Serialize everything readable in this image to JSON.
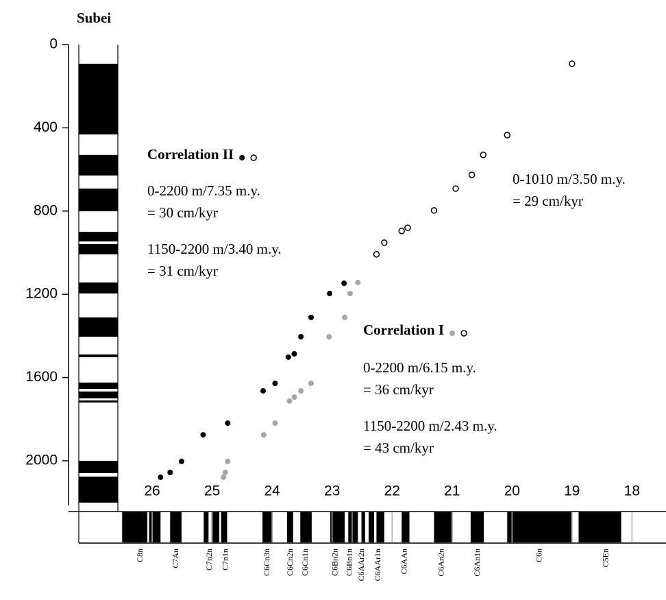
{
  "chart_data": {
    "type": "scatter",
    "title": "Subei",
    "ylim": [
      0,
      2200
    ],
    "yticks": [
      0,
      400,
      800,
      1200,
      1600,
      2000
    ],
    "xlim": [
      26.55,
      17.45
    ],
    "xticks": [
      26,
      25,
      24,
      23,
      22,
      21,
      20,
      19,
      18
    ],
    "series": [
      {
        "color": "#000000",
        "filled": true,
        "x": [
          22.8,
          23.04,
          23.35,
          23.52,
          23.63,
          23.73,
          23.95,
          24.15,
          24.74,
          25.15,
          25.51,
          25.7,
          25.86
        ],
        "values": [
          1147,
          1196,
          1311,
          1404,
          1486,
          1502,
          1628,
          1664,
          1819,
          1875,
          2003,
          2056,
          2079
        ]
      },
      {
        "color": "#a6a6a6",
        "filled": true,
        "x": [
          22.57,
          22.7,
          22.79,
          23.05,
          23.35,
          23.52,
          23.63,
          23.71,
          23.95,
          24.14,
          24.74,
          24.78,
          24.81
        ],
        "values": [
          1143,
          1196,
          1311,
          1404,
          1628,
          1664,
          1694,
          1713,
          1819,
          1875,
          2003,
          2056,
          2079
        ]
      },
      {
        "color": "#000000",
        "filled": false,
        "x": [
          19.0,
          20.08,
          20.48,
          20.67,
          20.94,
          21.3,
          21.74,
          21.84,
          22.13,
          22.26
        ],
        "values": [
          92,
          435,
          530,
          626,
          692,
          797,
          880,
          896,
          952,
          1008
        ]
      }
    ],
    "annotations": [
      {
        "title": "Correlation II",
        "series": [
          0,
          2
        ],
        "lines": [
          "0-2200 m/7.35 m.y.",
          "= 30 cm/kyr",
          "1150-2200 m/3.40 m.y.",
          "= 31 cm/kyr"
        ]
      },
      {
        "title": "Correlation I",
        "series": [
          1,
          2
        ],
        "lines": [
          "0-2200 m/6.15 m.y.",
          "= 36 cm/kyr",
          "1150-2200 m/2.43 m.y.",
          "= 43 cm/kyr"
        ]
      },
      {
        "lines": [
          "0-1010 m/3.50 m.y.",
          "= 29 cm/kyr"
        ]
      }
    ],
    "depth_column": [
      [
        92,
        432
      ],
      [
        530,
        629
      ],
      [
        692,
        801
      ],
      [
        900,
        946
      ],
      [
        959,
        1008
      ],
      [
        1143,
        1196
      ],
      [
        1311,
        1404
      ],
      [
        1489,
        1502
      ],
      [
        1624,
        1654
      ],
      [
        1667,
        1700
      ],
      [
        1710,
        1720
      ],
      [
        2000,
        2059
      ],
      [
        2076,
        2201
      ]
    ],
    "timescale": {
      "normal": [
        [
          26.5,
          26.08
        ],
        [
          26.05,
          25.86
        ],
        [
          25.7,
          25.51
        ],
        [
          25.14,
          25.06
        ],
        [
          25.01,
          24.88
        ],
        [
          24.85,
          24.75
        ],
        [
          24.16,
          23.99
        ],
        [
          23.75,
          23.65
        ],
        [
          23.53,
          23.34
        ],
        [
          23.03,
          22.79
        ],
        [
          22.73,
          22.67
        ],
        [
          22.66,
          22.57
        ],
        [
          22.51,
          22.45
        ],
        [
          22.39,
          22.3
        ],
        [
          22.26,
          22.13
        ],
        [
          21.84,
          21.71
        ],
        [
          21.3,
          20.99
        ],
        [
          20.69,
          20.47
        ],
        [
          20.08,
          19.01
        ],
        [
          18.89,
          18.18
        ]
      ],
      "chrons": [
        {
          "name": "C8n",
          "age": 26.19
        },
        {
          "name": "C7An",
          "age": 25.6
        },
        {
          "name": "C7n2n",
          "age": 25.04
        },
        {
          "name": "C7n1n",
          "age": 24.77
        },
        {
          "name": "C6Cn3n",
          "age": 24.08
        },
        {
          "name": "C6Cn2n",
          "age": 23.69
        },
        {
          "name": "C6Cn1n",
          "age": 23.44
        },
        {
          "name": "C6Bn2n",
          "age": 22.94
        },
        {
          "name": "C6Bn1n",
          "age": 22.7
        },
        {
          "name": "C6AAr2n",
          "age": 22.5
        },
        {
          "name": "C6AAr1n",
          "age": 22.23
        },
        {
          "name": "C6AAn",
          "age": 21.79
        },
        {
          "name": "C6An2n",
          "age": 21.17
        },
        {
          "name": "C6An1n",
          "age": 20.57
        },
        {
          "name": "C6n",
          "age": 19.54
        },
        {
          "name": "C5En",
          "age": 18.43
        }
      ]
    }
  }
}
